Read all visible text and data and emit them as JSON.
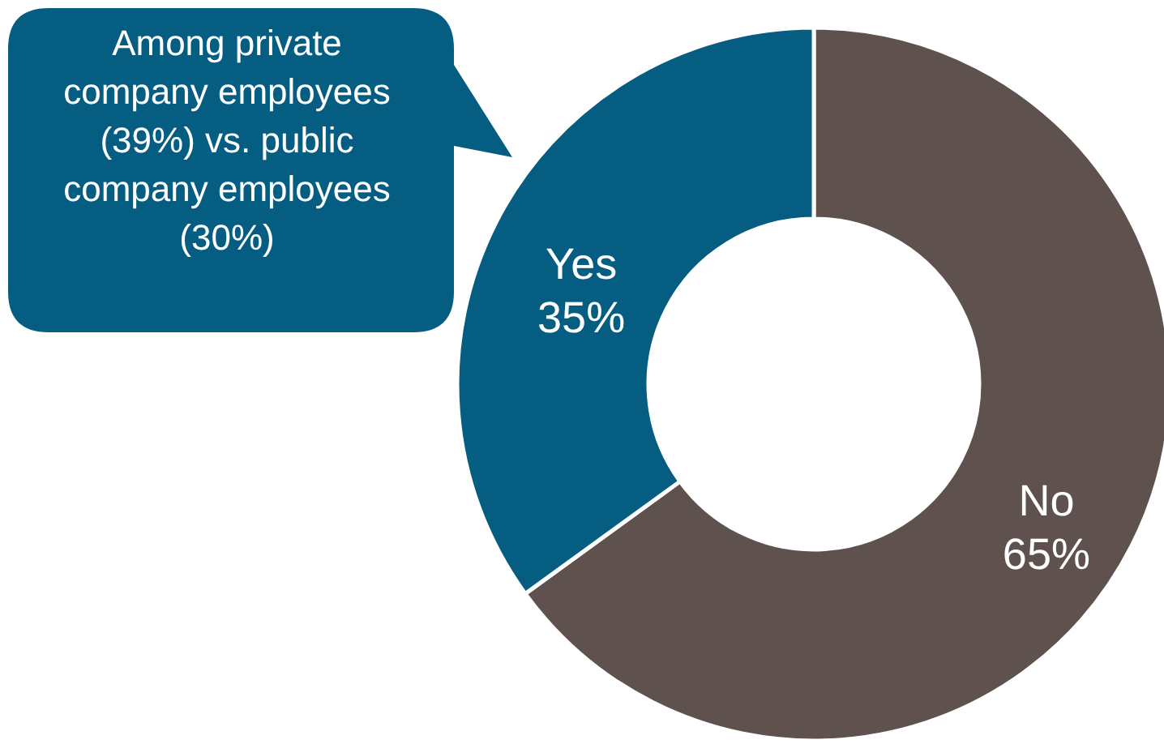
{
  "chart_data": {
    "type": "donut",
    "categories": [
      "No",
      "Yes"
    ],
    "values": [
      65,
      35
    ],
    "value_labels": [
      "65%",
      "35%"
    ],
    "colors": [
      "#5f514d",
      "#055e82"
    ],
    "annotations": [
      "Among private company employees (39%) vs. public company employees (30%)"
    ]
  }
}
